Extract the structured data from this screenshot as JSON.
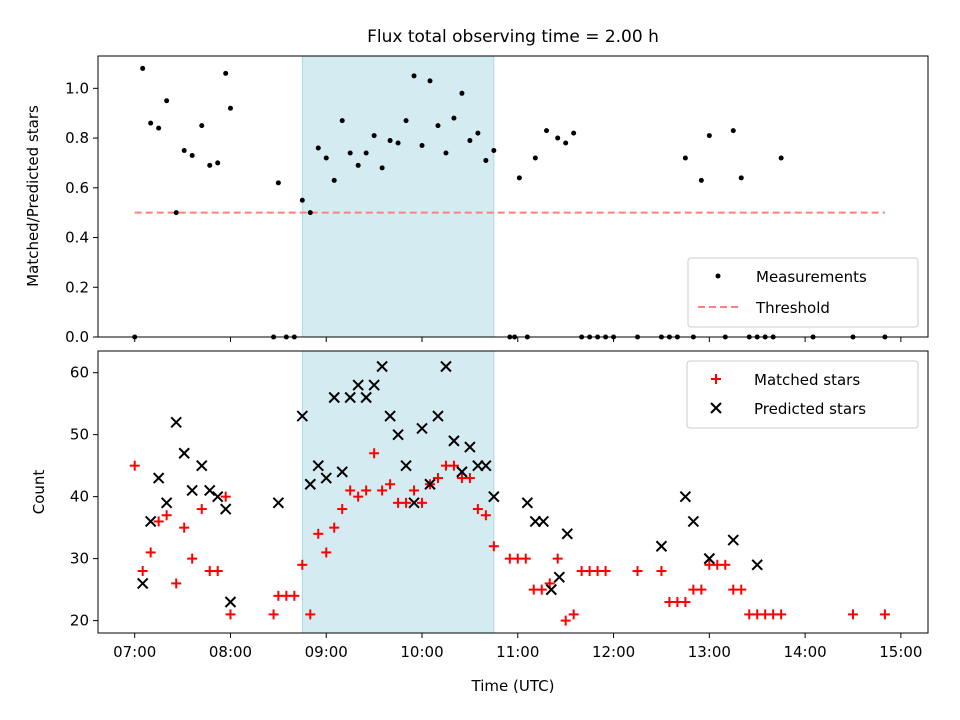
{
  "chart_data": [
    {
      "type": "scatter",
      "title": "Flux total observing time = 2.00 h",
      "ylabel": "Matched/Predicted stars",
      "xlabel": "",
      "xlim": [
        "06:37",
        "15:17"
      ],
      "ylim": [
        0,
        1.13
      ],
      "yticks": [
        0.0,
        0.2,
        0.4,
        0.6,
        0.8,
        1.0
      ],
      "ytick_labels": [
        "0.0",
        "0.2",
        "0.4",
        "0.6",
        "0.8",
        "1.0"
      ],
      "grid": false,
      "legend": "lower-right",
      "highlight_band": {
        "from": "08:45",
        "to": "10:45",
        "color": "#d4ebf1"
      },
      "series": [
        {
          "name": "Measurements",
          "marker": "dot",
          "color": "#000000",
          "x": [
            "07:00",
            "07:05",
            "07:10",
            "07:15",
            "07:20",
            "07:26",
            "07:31",
            "07:36",
            "07:42",
            "07:47",
            "07:52",
            "07:57",
            "08:00",
            "08:27",
            "08:30",
            "08:35",
            "08:40",
            "08:45",
            "08:50",
            "08:55",
            "09:00",
            "09:05",
            "09:10",
            "09:15",
            "09:20",
            "09:25",
            "09:30",
            "09:35",
            "09:40",
            "09:45",
            "09:50",
            "09:55",
            "10:00",
            "10:05",
            "10:10",
            "10:15",
            "10:20",
            "10:25",
            "10:30",
            "10:35",
            "10:40",
            "10:45",
            "10:55",
            "10:58",
            "11:01",
            "11:06",
            "11:11",
            "11:18",
            "11:25",
            "11:30",
            "11:35",
            "11:40",
            "11:45",
            "11:50",
            "11:55",
            "12:00",
            "12:15",
            "12:30",
            "12:35",
            "12:40",
            "12:45",
            "12:50",
            "12:55",
            "13:00",
            "13:10",
            "13:15",
            "13:20",
            "13:25",
            "13:30",
            "13:35",
            "13:40",
            "13:45",
            "14:05",
            "14:30",
            "14:50"
          ],
          "y": [
            0.0,
            1.08,
            0.86,
            0.84,
            0.95,
            0.5,
            0.75,
            0.73,
            0.85,
            0.69,
            0.7,
            1.06,
            0.92,
            0.0,
            0.62,
            0.0,
            0.0,
            0.55,
            0.5,
            0.76,
            0.72,
            0.63,
            0.87,
            0.74,
            0.69,
            0.74,
            0.81,
            0.68,
            0.79,
            0.78,
            0.87,
            1.05,
            0.77,
            1.03,
            0.85,
            0.74,
            0.88,
            0.98,
            0.79,
            0.82,
            0.71,
            0.75,
            0.0,
            0.0,
            0.64,
            0.0,
            0.72,
            0.83,
            0.8,
            0.78,
            0.82,
            0.0,
            0.0,
            0.0,
            0.0,
            0.0,
            0.0,
            0.0,
            0.0,
            0.0,
            0.72,
            0.0,
            0.63,
            0.81,
            0.0,
            0.83,
            0.64,
            0.0,
            0.0,
            0.0,
            0.0,
            0.72,
            0.0,
            0.0,
            0.0
          ]
        },
        {
          "name": "Threshold",
          "type": "line",
          "style": "dashed",
          "color": "#ff7f7f",
          "x": [
            "07:00",
            "14:50"
          ],
          "y": [
            0.5,
            0.5
          ]
        }
      ]
    },
    {
      "type": "scatter",
      "title": "",
      "ylabel": "Count",
      "xlabel": "Time (UTC)",
      "xlim": [
        "06:37",
        "15:17"
      ],
      "ylim": [
        18,
        63.5
      ],
      "yticks": [
        20,
        30,
        40,
        50,
        60
      ],
      "ytick_labels": [
        "20",
        "30",
        "40",
        "50",
        "60"
      ],
      "xtick_labels": [
        "07:00",
        "08:00",
        "09:00",
        "10:00",
        "11:00",
        "12:00",
        "13:00",
        "14:00",
        "15:00"
      ],
      "grid": false,
      "legend": "upper-right",
      "highlight_band": {
        "from": "08:45",
        "to": "10:45",
        "color": "#d4ebf1"
      },
      "series": [
        {
          "name": "Matched stars",
          "marker": "plus",
          "color": "#ff0000",
          "x": [
            "07:00",
            "07:05",
            "07:10",
            "07:15",
            "07:20",
            "07:26",
            "07:31",
            "07:36",
            "07:42",
            "07:47",
            "07:52",
            "07:57",
            "08:00",
            "08:27",
            "08:30",
            "08:35",
            "08:40",
            "08:45",
            "08:50",
            "08:55",
            "09:00",
            "09:05",
            "09:10",
            "09:15",
            "09:20",
            "09:25",
            "09:30",
            "09:35",
            "09:40",
            "09:45",
            "09:50",
            "09:55",
            "10:00",
            "10:05",
            "10:10",
            "10:15",
            "10:20",
            "10:25",
            "10:30",
            "10:35",
            "10:40",
            "10:45",
            "10:55",
            "11:00",
            "11:05",
            "11:10",
            "11:15",
            "11:20",
            "11:25",
            "11:30",
            "11:35",
            "11:40",
            "11:45",
            "11:50",
            "11:55",
            "12:15",
            "12:30",
            "12:35",
            "12:40",
            "12:45",
            "12:50",
            "12:55",
            "13:00",
            "13:05",
            "13:10",
            "13:15",
            "13:20",
            "13:25",
            "13:30",
            "13:35",
            "13:40",
            "13:45",
            "14:30",
            "14:50"
          ],
          "y": [
            45,
            28,
            31,
            36,
            37,
            26,
            35,
            30,
            38,
            28,
            28,
            40,
            21,
            21,
            24,
            24,
            24,
            29,
            21,
            34,
            31,
            35,
            38,
            41,
            40,
            41,
            47,
            41,
            42,
            39,
            39,
            41,
            39,
            42,
            43,
            45,
            45,
            43,
            43,
            38,
            37,
            32,
            30,
            30,
            30,
            25,
            25,
            26,
            30,
            20,
            21,
            28,
            28,
            28,
            28,
            28,
            28,
            23,
            23,
            23,
            25,
            25,
            29,
            29,
            29,
            25,
            25,
            21,
            21,
            21,
            21,
            21,
            21,
            21
          ]
        },
        {
          "name": "Predicted stars",
          "marker": "x",
          "color": "#000000",
          "x": [
            "07:05",
            "07:10",
            "07:15",
            "07:20",
            "07:26",
            "07:31",
            "07:36",
            "07:42",
            "07:47",
            "07:52",
            "07:57",
            "08:00",
            "08:30",
            "08:45",
            "08:50",
            "08:55",
            "09:00",
            "09:05",
            "09:10",
            "09:15",
            "09:20",
            "09:25",
            "09:30",
            "09:35",
            "09:40",
            "09:45",
            "09:50",
            "09:55",
            "10:00",
            "10:05",
            "10:10",
            "10:15",
            "10:20",
            "10:25",
            "10:30",
            "10:35",
            "10:40",
            "10:45",
            "11:06",
            "11:11",
            "11:16",
            "11:21",
            "11:26",
            "11:31",
            "12:30",
            "12:45",
            "12:50",
            "13:00",
            "13:15",
            "13:30"
          ],
          "y": [
            26,
            36,
            43,
            39,
            52,
            47,
            41,
            45,
            41,
            40,
            38,
            23,
            39,
            53,
            42,
            45,
            43,
            56,
            44,
            56,
            58,
            56,
            58,
            61,
            53,
            50,
            45,
            39,
            51,
            42,
            53,
            61,
            49,
            44,
            48,
            45,
            45,
            40,
            39,
            36,
            36,
            25,
            27,
            34,
            32,
            40,
            36,
            30,
            33,
            29
          ]
        }
      ]
    }
  ]
}
